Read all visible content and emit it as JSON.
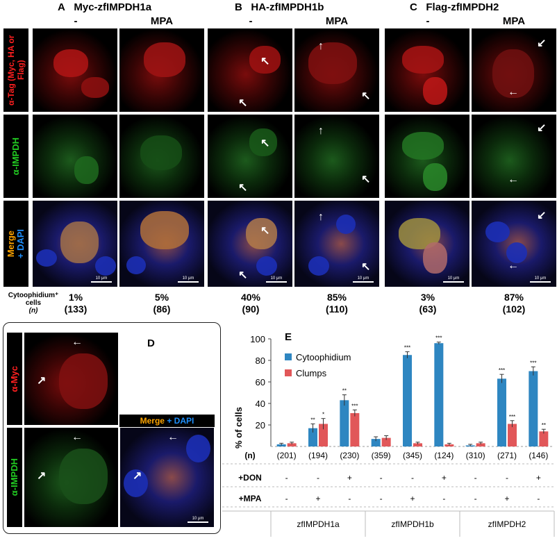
{
  "headers": {
    "A": {
      "letter": "A",
      "title": "Myc-zfIMPDH1a"
    },
    "B": {
      "letter": "B",
      "title": "HA-zfIMPDH1b"
    },
    "C": {
      "letter": "C",
      "title": "Flag-zfIMPDH2"
    }
  },
  "conditions": [
    "-",
    "MPA",
    "-",
    "MPA",
    "-",
    "MPA"
  ],
  "row_labels": {
    "tag": "α-Tag (Myc, HA or Flag)",
    "impdh": "α-IMPDH",
    "merge_a": "Merge",
    "merge_b": "+ DAPI"
  },
  "scale_label": "10 μm",
  "stats": {
    "label": "Cytoophidium⁺ cells",
    "n_label": "(n)",
    "percents": [
      "1%",
      "5%",
      "40%",
      "85%",
      "3%",
      "87%"
    ],
    "counts": [
      "(133)",
      "(86)",
      "(90)",
      "(110)",
      "(63)",
      "(102)"
    ]
  },
  "panel_d": {
    "letter": "D",
    "myc_label": "α-Myc",
    "impdh_label": "α-IMPDH",
    "merge_a": "Merge",
    "merge_b": "+ DAPI"
  },
  "colors": {
    "cytoophidium": "#2e86c1",
    "clumps": "#e15759",
    "red": "#ff2020",
    "green": "#22cc22",
    "orange": "#ffa500",
    "blue": "#1e90ff"
  },
  "chart_data": {
    "letter": "E",
    "type": "bar",
    "ylabel": "% of cells",
    "ylim": [
      0,
      100
    ],
    "yticks": [
      20,
      40,
      60,
      80,
      100
    ],
    "legend_position": "top-left",
    "series": [
      {
        "name": "Cytoophidium",
        "values": [
          2,
          17,
          43,
          7,
          85,
          96,
          1,
          63,
          70
        ],
        "errors": [
          1,
          4,
          5,
          2,
          3,
          1,
          1,
          4,
          4
        ],
        "sig": [
          "",
          "**",
          "**",
          "",
          "***",
          "***",
          "",
          "***",
          "***"
        ]
      },
      {
        "name": "Clumps",
        "values": [
          3,
          21,
          31,
          8,
          3,
          2,
          3,
          21,
          14
        ],
        "errors": [
          1,
          5,
          3,
          2,
          1,
          1,
          1,
          3,
          2
        ],
        "sig": [
          "",
          "*",
          "***",
          "",
          "",
          "",
          "",
          "***",
          "**"
        ]
      }
    ],
    "table": {
      "n_label": "(n)",
      "n": [
        "(201)",
        "(194)",
        "(230)",
        "(359)",
        "(345)",
        "(124)",
        "(310)",
        "(271)",
        "(146)"
      ],
      "don_label": "+DON",
      "don": [
        "-",
        "-",
        "+",
        "-",
        "-",
        "+",
        "-",
        "-",
        "+"
      ],
      "mpa_label": "+MPA",
      "mpa": [
        "-",
        "+",
        "-",
        "-",
        "+",
        "-",
        "-",
        "+",
        "-"
      ],
      "groups": [
        "zfIMPDH1a",
        "zfIMPDH1b",
        "zfIMPDH2"
      ]
    }
  }
}
